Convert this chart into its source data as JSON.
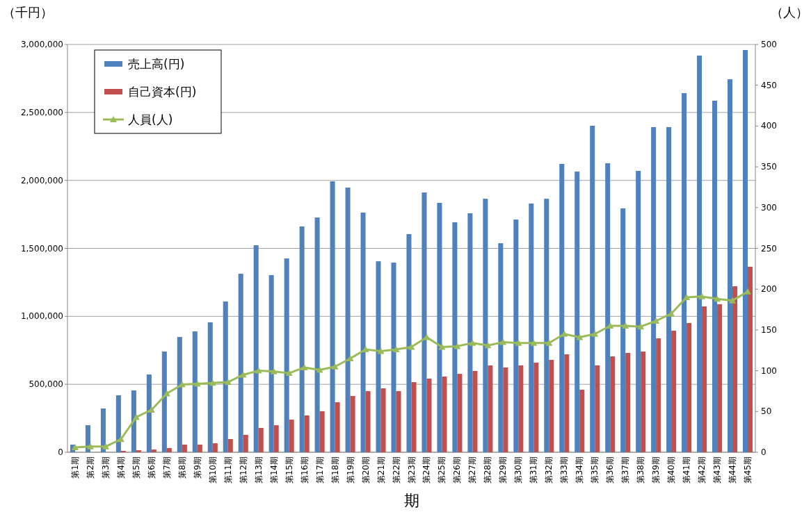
{
  "chart_data": {
    "type": "bar",
    "xlabel": "期",
    "ylabel": "（千円）",
    "y2label": "（人）",
    "categories": [
      "第1期",
      "第2期",
      "第3期",
      "第4期",
      "第5期",
      "第6期",
      "第7期",
      "第8期",
      "第9期",
      "第10期",
      "第11期",
      "第12期",
      "第13期",
      "第14期",
      "第15期",
      "第16期",
      "第17期",
      "第18期",
      "第19期",
      "第20期",
      "第21期",
      "第22期",
      "第23期",
      "第24期",
      "第25期",
      "第26期",
      "第27期",
      "第28期",
      "第29期",
      "第30期",
      "第31期",
      "第32期",
      "第33期",
      "第34期",
      "第35期",
      "第36期",
      "第37期",
      "第38期",
      "第39期",
      "第40期",
      "第41期",
      "第42期",
      "第43期",
      "第44期",
      "第45期"
    ],
    "series": [
      {
        "name": "売上高(円)",
        "color": "#4f81bd",
        "values": [
          56000,
          199000,
          322000,
          419000,
          455000,
          572000,
          741000,
          848000,
          889000,
          956000,
          1109000,
          1313000,
          1523000,
          1303000,
          1426000,
          1661000,
          1727000,
          1993000,
          1947000,
          1763000,
          1405000,
          1395000,
          1605000,
          1911000,
          1835000,
          1692000,
          1758000,
          1865000,
          1538000,
          1712000,
          1830000,
          1865000,
          2121000,
          2065000,
          2402000,
          2126000,
          1794000,
          2070000,
          2392000,
          2392000,
          2642000,
          2918000,
          2586000,
          2744000,
          2959000
        ]
      },
      {
        "name": "自己資本(円)",
        "color": "#c0504d",
        "values": [
          null,
          null,
          null,
          10000,
          15000,
          20000,
          31000,
          56000,
          56000,
          66000,
          97000,
          128000,
          179000,
          199000,
          240000,
          271000,
          302000,
          368000,
          414000,
          450000,
          470000,
          450000,
          516000,
          542000,
          557000,
          577000,
          598000,
          639000,
          624000,
          639000,
          659000,
          680000,
          721000,
          460000,
          639000,
          705000,
          731000,
          741000,
          838000,
          894000,
          951000,
          1073000,
          1089000,
          1221000,
          1365000
        ]
      },
      {
        "name": "人員(人)",
        "color": "#9bbb59",
        "type": "line",
        "axis": "y2",
        "values": [
          6,
          7,
          7,
          16,
          43,
          52,
          72,
          83,
          84,
          85,
          86,
          95,
          100,
          99,
          97,
          104,
          101,
          105,
          115,
          126,
          124,
          126,
          129,
          141,
          129,
          130,
          134,
          131,
          135,
          134,
          134,
          134,
          145,
          141,
          145,
          155,
          155,
          154,
          161,
          170,
          190,
          191,
          188,
          186,
          197
        ]
      }
    ],
    "ylim": [
      0,
      3000000
    ],
    "yticks": [
      {
        "value": 0,
        "label": "0"
      },
      {
        "value": 500000,
        "label": "500,000"
      },
      {
        "value": 1000000,
        "label": "1,000,000"
      },
      {
        "value": 1500000,
        "label": "1,500,000"
      },
      {
        "value": 2000000,
        "label": "2,000,000"
      },
      {
        "value": 2500000,
        "label": "2,500,000"
      },
      {
        "value": 3000000,
        "label": "3,000,000"
      }
    ],
    "y2lim": [
      0,
      500
    ],
    "y2ticks": [
      0,
      50,
      100,
      150,
      200,
      250,
      300,
      350,
      400,
      450,
      500
    ],
    "grid": "y",
    "legend": "top left",
    "marker": "triangle"
  }
}
